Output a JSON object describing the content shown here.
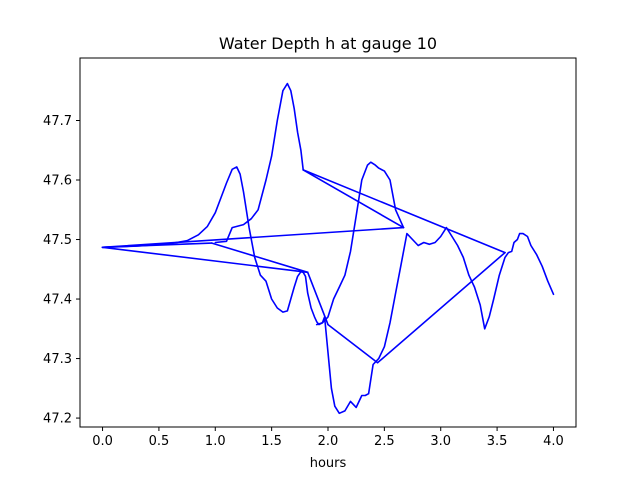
{
  "chart_data": {
    "type": "line",
    "title": "Water Depth h at gauge 10",
    "xlabel": "hours",
    "ylabel": "",
    "xlim": [
      -0.2,
      4.2
    ],
    "ylim": [
      47.185,
      47.805
    ],
    "xticks": [
      0.0,
      0.5,
      1.0,
      1.5,
      2.0,
      2.5,
      3.0,
      3.5,
      4.0
    ],
    "xtick_labels": [
      "0.0",
      "0.5",
      "1.0",
      "1.5",
      "2.0",
      "2.5",
      "3.0",
      "3.5",
      "4.0"
    ],
    "yticks": [
      47.2,
      47.3,
      47.4,
      47.5,
      47.6,
      47.7
    ],
    "ytick_labels": [
      "47.2",
      "47.3",
      "47.4",
      "47.5",
      "47.6",
      "47.7"
    ],
    "grid": false,
    "legend": "none",
    "series": [
      {
        "color": "#0000ff",
        "x": [
          0.0,
          0.3,
          0.6,
          0.75,
          0.85,
          0.93,
          1.0,
          1.05,
          1.1,
          1.15,
          1.19,
          1.22,
          1.25,
          1.3,
          1.35,
          1.4,
          1.45,
          1.5,
          1.55,
          1.6,
          1.64,
          1.67,
          1.7,
          1.73,
          1.76,
          1.78,
          1.8,
          1.82,
          1.85,
          1.88,
          1.9,
          1.92,
          1.95,
          1.97,
          2.0,
          2.03,
          2.06,
          2.1,
          2.15,
          2.2,
          2.25,
          2.3,
          2.33,
          2.36,
          2.4,
          2.45,
          2.5,
          2.55,
          2.6,
          2.65,
          2.7,
          2.75,
          2.8,
          2.85,
          2.9,
          2.95,
          3.0,
          3.05,
          3.1,
          3.15,
          3.2,
          3.25,
          3.3,
          3.35,
          3.39,
          3.43,
          3.47,
          3.52,
          3.57,
          3.6,
          3.63,
          3.65,
          3.68,
          3.7,
          3.73,
          3.77,
          3.8,
          3.85,
          3.9,
          3.95,
          4.0
        ],
        "y": [
          47.487,
          47.489,
          47.493,
          47.498,
          47.508,
          47.522,
          47.545,
          47.57,
          47.595,
          47.618,
          47.622,
          47.61,
          47.58,
          47.52,
          47.47,
          47.44,
          47.43,
          47.4,
          47.385,
          47.378,
          47.38,
          47.4,
          47.42,
          47.438,
          47.446,
          47.445,
          47.438,
          47.41,
          47.385,
          47.37,
          47.362,
          47.357,
          47.36,
          47.37,
          47.31,
          47.25,
          47.22,
          47.208,
          47.212,
          47.228,
          47.218,
          47.238,
          47.238,
          47.241,
          47.29,
          47.3,
          47.32,
          47.36,
          47.41,
          47.46,
          47.51,
          47.5,
          47.49,
          47.495,
          47.492,
          47.495,
          47.505,
          47.52,
          47.505,
          47.49,
          47.47,
          47.44,
          47.42,
          47.39,
          47.35,
          47.37,
          47.4,
          47.44,
          47.47,
          47.478,
          47.48,
          47.495,
          47.5,
          47.51,
          47.51,
          47.505,
          47.49,
          47.475,
          47.455,
          47.43,
          47.408
        ]
      }
    ],
    "connector_lines": [
      {
        "x": [
          0.0,
          2.67
        ],
        "y": [
          47.487,
          47.52
        ]
      },
      {
        "x": [
          2.67,
          1.78
        ],
        "y": [
          47.52,
          47.617
        ]
      },
      {
        "x": [
          1.78,
          3.57
        ],
        "y": [
          47.617,
          47.478
        ]
      },
      {
        "x": [
          3.57,
          2.44
        ],
        "y": [
          47.478,
          47.293
        ]
      },
      {
        "x": [
          2.44,
          2.0
        ],
        "y": [
          47.293,
          47.357
        ]
      },
      {
        "x": [
          2.0,
          1.82
        ],
        "y": [
          47.357,
          47.445
        ]
      },
      {
        "x": [
          1.82,
          0.0
        ],
        "y": [
          47.445,
          47.487
        ]
      },
      {
        "x": [
          0.0,
          0.97
        ],
        "y": [
          47.487,
          47.494
        ]
      },
      {
        "x": [
          0.97,
          1.82
        ],
        "y": [
          47.494,
          47.445
        ]
      }
    ],
    "extra_strokes": [
      {
        "x": [
          1.0,
          1.1,
          1.15,
          1.25,
          1.32,
          1.38,
          1.45,
          1.5,
          1.55,
          1.6,
          1.64,
          1.67,
          1.7,
          1.73,
          1.76,
          1.78
        ],
        "y": [
          47.495,
          47.497,
          47.52,
          47.525,
          47.535,
          47.55,
          47.6,
          47.64,
          47.7,
          47.75,
          47.762,
          47.75,
          47.72,
          47.68,
          47.65,
          47.617
        ]
      },
      {
        "x": [
          1.9,
          1.95,
          2.0,
          2.05,
          2.1,
          2.15,
          2.2,
          2.25,
          2.3,
          2.35,
          2.38,
          2.42,
          2.45,
          2.5,
          2.55,
          2.6,
          2.67
        ],
        "y": [
          47.357,
          47.36,
          47.37,
          47.4,
          47.42,
          47.44,
          47.48,
          47.54,
          47.6,
          47.625,
          47.63,
          47.625,
          47.62,
          47.615,
          47.6,
          47.55,
          47.52
        ]
      }
    ]
  }
}
